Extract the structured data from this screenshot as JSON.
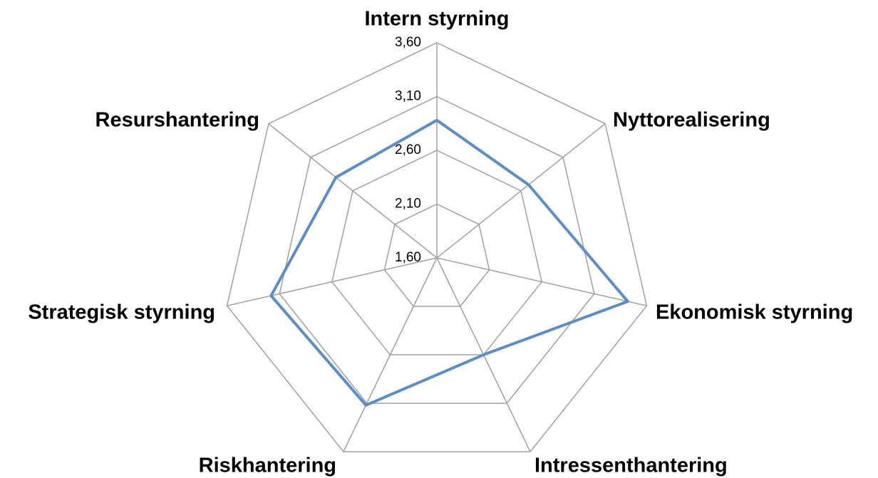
{
  "chart_data": {
    "type": "radar",
    "categories": [
      "Intern styrning",
      "Nyttorealisering",
      "Ekonomisk styrning",
      "Intressenthantering",
      "Riskhantering",
      "Strategisk styrning",
      "Resurshantering"
    ],
    "series": [
      {
        "name": null,
        "color": "#5b8ec8",
        "values": [
          2.88,
          2.69,
          3.42,
          2.6,
          3.12,
          3.18,
          2.8
        ]
      }
    ],
    "rlim": [
      1.6,
      3.6
    ],
    "rticks": [
      {
        "value": 1.6,
        "label": "1,60"
      },
      {
        "value": 2.1,
        "label": "2,10"
      },
      {
        "value": 2.6,
        "label": "2,60"
      },
      {
        "value": 3.1,
        "label": "3,10"
      },
      {
        "value": 3.6,
        "label": "3,60"
      }
    ],
    "grid": true
  }
}
